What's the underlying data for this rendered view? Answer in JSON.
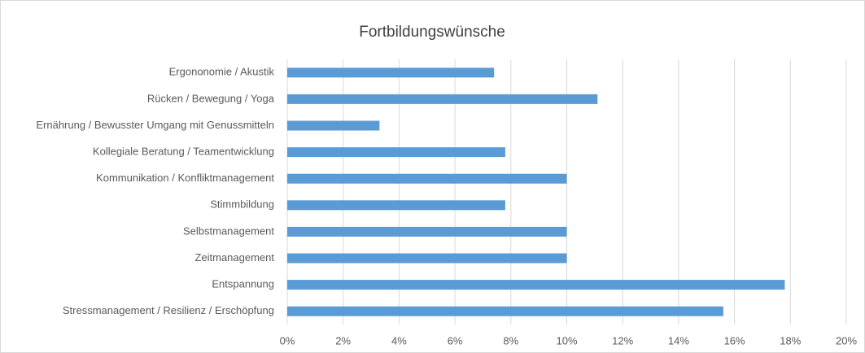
{
  "chart_data": {
    "type": "bar",
    "orientation": "horizontal",
    "title": "Fortbildungswünsche",
    "categories": [
      "Ergononomie / Akustik",
      "Rücken / Bewegung / Yoga",
      "Ernährung / Bewusster Umgang mit Genussmitteln",
      "Kollegiale Beratung / Teamentwicklung",
      "Kommunikation / Konfliktmanagement",
      "Stimmbildung",
      "Selbstmanagement",
      "Zeitmanagement",
      "Entspannung",
      "Stressmanagement / Resilienz / Erschöpfung"
    ],
    "values": [
      7.4,
      11.1,
      3.3,
      7.8,
      10,
      7.8,
      10,
      10,
      17.8,
      15.6
    ],
    "color": "#5b9bd5",
    "xlim": [
      0,
      20
    ],
    "xticks": [
      {
        "value": 0,
        "label": "0%"
      },
      {
        "value": 2,
        "label": "2%"
      },
      {
        "value": 4,
        "label": "4%"
      },
      {
        "value": 6,
        "label": "6%"
      },
      {
        "value": 8,
        "label": "8%"
      },
      {
        "value": 10,
        "label": "10%"
      },
      {
        "value": 12,
        "label": "12%"
      },
      {
        "value": 14,
        "label": "14%"
      },
      {
        "value": 16,
        "label": "16%"
      },
      {
        "value": 18,
        "label": "18%"
      },
      {
        "value": 20,
        "label": "20%"
      }
    ],
    "grid": true
  }
}
